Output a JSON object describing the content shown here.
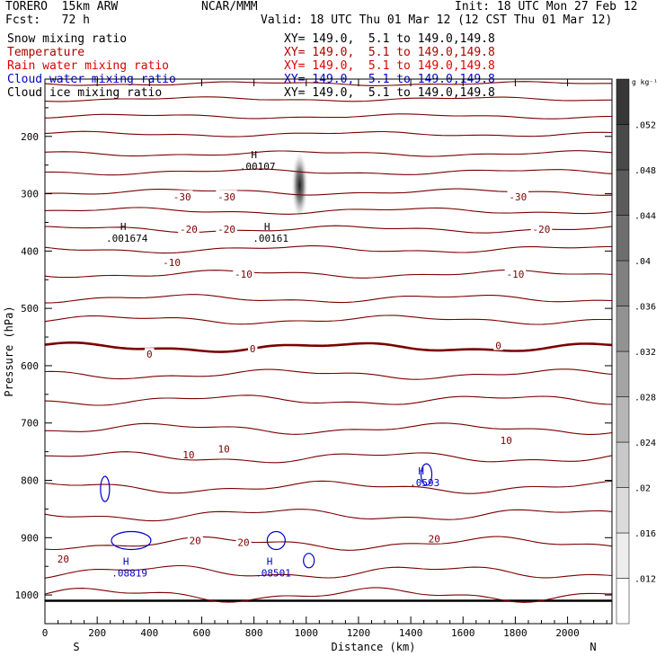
{
  "header": {
    "model": "TORERO  15km ARW",
    "org": "NCAR/MMM",
    "init": "Init: 18 UTC Mon 27 Feb 12",
    "fcst": "Fcst:   72 h",
    "valid": "Valid: 18 UTC Thu 01 Mar 12 (12 CST Thu 01 Mar 12)"
  },
  "fields": [
    {
      "name": "Snow mixing ratio",
      "xy": "XY= 149.0,  5.1 to 149.0,149.8",
      "color": "#000000"
    },
    {
      "name": "Temperature",
      "xy": "XY= 149.0,  5.1 to 149.0,149.8",
      "color": "#b00000"
    },
    {
      "name": "Rain water mixing ratio",
      "xy": "XY= 149.0,  5.1 to 149.0,149.8",
      "color": "#e00000"
    },
    {
      "name": "Cloud water mixing ratio",
      "xy": "XY= 149.0,  5.1 to 149.0,149.8",
      "color": "#0000cc"
    },
    {
      "name": "Cloud ice mixing ratio",
      "xy": "XY= 149.0,  5.1 to 149.0,149.8",
      "color": "#000000"
    }
  ],
  "chart_data": {
    "type": "cross-section",
    "xlabel": "Distance (km)",
    "ylabel": "Pressure (hPa)",
    "xlim": [
      0,
      2170
    ],
    "ylim": [
      1050,
      100
    ],
    "xticks": [
      0,
      200,
      400,
      600,
      800,
      1000,
      1200,
      1400,
      1600,
      1800,
      2000
    ],
    "yticks": [
      200,
      300,
      400,
      500,
      600,
      700,
      800,
      900,
      1000
    ],
    "left_end": "S",
    "right_end": "N",
    "colorbar": {
      "unit": "g kg⁻¹",
      "ticks": [
        ".012",
        ".016",
        ".02",
        ".024",
        ".028",
        ".032",
        ".036",
        ".04",
        ".044",
        ".048",
        ".052"
      ]
    },
    "temperature_labels": [
      {
        "text": "-30",
        "x": 525,
        "p": 305
      },
      {
        "text": "-30",
        "x": 695,
        "p": 305
      },
      {
        "text": "-30",
        "x": 1810,
        "p": 305
      },
      {
        "text": "-20",
        "x": 550,
        "p": 362
      },
      {
        "text": "-20",
        "x": 695,
        "p": 362
      },
      {
        "text": "-20",
        "x": 1900,
        "p": 362
      },
      {
        "text": "-10",
        "x": 485,
        "p": 420
      },
      {
        "text": "-10",
        "x": 760,
        "p": 440
      },
      {
        "text": "-10",
        "x": 1800,
        "p": 440
      },
      {
        "text": "0",
        "x": 400,
        "p": 580
      },
      {
        "text": "0",
        "x": 795,
        "p": 570
      },
      {
        "text": "0",
        "x": 1735,
        "p": 565
      },
      {
        "text": "10",
        "x": 550,
        "p": 755
      },
      {
        "text": "10",
        "x": 685,
        "p": 745
      },
      {
        "text": "10",
        "x": 1765,
        "p": 730
      },
      {
        "text": "20",
        "x": 70,
        "p": 937
      },
      {
        "text": "20",
        "x": 575,
        "p": 905
      },
      {
        "text": "20",
        "x": 760,
        "p": 908
      },
      {
        "text": "20",
        "x": 1490,
        "p": 902
      }
    ],
    "maxima": [
      {
        "label": "H",
        "value": ".00107",
        "x": 800,
        "p": 238,
        "color": "#000000"
      },
      {
        "label": "H",
        "value": ".001674",
        "x": 300,
        "p": 363,
        "color": "#000000"
      },
      {
        "label": "H",
        "value": ".00161",
        "x": 850,
        "p": 363,
        "color": "#000000"
      },
      {
        "label": "H",
        "value": ".0593",
        "x": 1440,
        "p": 790,
        "color": "#0000cc"
      },
      {
        "label": "H",
        "value": ".08819",
        "x": 310,
        "p": 947,
        "color": "#0000cc"
      },
      {
        "label": "H",
        "value": ".08501",
        "x": 860,
        "p": 947,
        "color": "#0000cc"
      }
    ]
  }
}
